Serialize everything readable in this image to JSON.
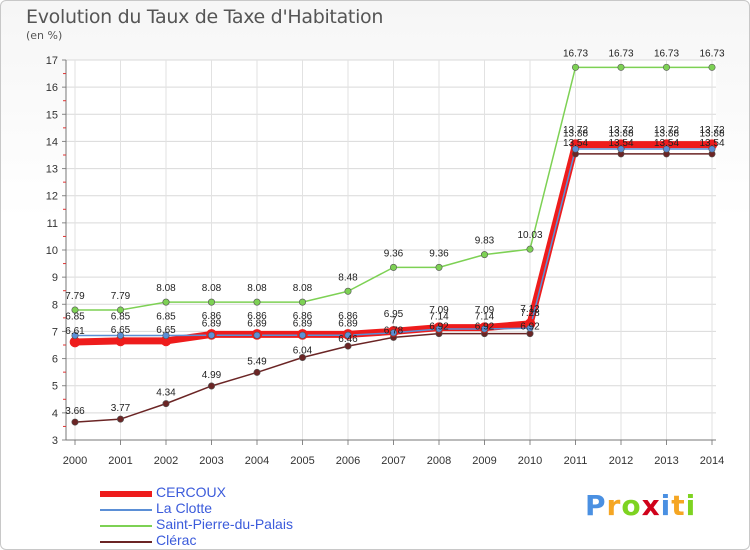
{
  "chart_data": {
    "type": "line",
    "title": "Evolution du Taux de Taxe d'Habitation",
    "unit_label": "(en %)",
    "categories": [
      "2000",
      "2001",
      "2002",
      "2003",
      "2004",
      "2005",
      "2006",
      "2007",
      "2008",
      "2009",
      "2010",
      "2011",
      "2012",
      "2013",
      "2014"
    ],
    "ylim": [
      3,
      17
    ],
    "yticks": [
      3,
      4,
      5,
      6,
      7,
      8,
      9,
      10,
      11,
      12,
      13,
      14,
      15,
      16,
      17
    ],
    "grid": true,
    "legend_position": "bottom-left",
    "series": [
      {
        "name": "CERCOUX",
        "color": "#ee1c1c",
        "values": [
          6.61,
          6.65,
          6.65,
          6.89,
          6.89,
          6.89,
          6.89,
          7,
          7.14,
          7.14,
          7.28,
          13.88,
          13.88,
          13.88,
          13.88
        ],
        "labels": [
          "6.61",
          "6.65",
          "6.65",
          "6.89",
          "6.89",
          "6.89",
          "6.89",
          "7",
          "7.14",
          "7.14",
          "7.28",
          "13.88",
          "13.88",
          "13.88",
          "13.88"
        ]
      },
      {
        "name": "La Clotte",
        "color": "#5b8fd6",
        "values": [
          6.85,
          6.85,
          6.85,
          6.86,
          6.86,
          6.86,
          6.86,
          6.95,
          7.09,
          7.09,
          7.12,
          13.72,
          13.72,
          13.72,
          13.72
        ],
        "labels": [
          "6.85",
          "6.85",
          "6.85",
          "6.86",
          "6.86",
          "6.86",
          "6.86",
          "6.95",
          "7.09",
          "7.09",
          "7.12",
          "13.72",
          "13.72",
          "13.72",
          "13.72"
        ]
      },
      {
        "name": "Saint-Pierre-du-Palais",
        "color": "#7dd154",
        "values": [
          7.79,
          7.79,
          8.08,
          8.08,
          8.08,
          8.08,
          8.48,
          9.36,
          9.36,
          9.83,
          10.03,
          16.73,
          16.73,
          16.73,
          16.73
        ],
        "labels": [
          "7.79",
          "7.79",
          "8.08",
          "8.08",
          "8.08",
          "8.08",
          "8.48",
          "9.36",
          "9.36",
          "9.83",
          "10.03",
          "16.73",
          "16.73",
          "16.73",
          "16.73"
        ]
      },
      {
        "name": "Clérac",
        "color": "#6b2525",
        "values": [
          3.66,
          3.77,
          4.34,
          4.99,
          5.49,
          6.04,
          6.46,
          6.78,
          6.92,
          6.92,
          6.92,
          13.54,
          13.54,
          13.54,
          13.54
        ],
        "labels": [
          "3.66",
          "3.77",
          "4.34",
          "4.99",
          "5.49",
          "6.04",
          "6.46",
          "6.78",
          "6.92",
          "6.92",
          "6.92",
          "13.54",
          "13.54",
          "13.54",
          "13.54"
        ]
      }
    ]
  },
  "branding": {
    "logo_letters": [
      "P",
      "r",
      "o",
      "x",
      "i",
      "t",
      "i"
    ],
    "logo_colors": [
      "#4a90e2",
      "#f5a623",
      "#7ed321",
      "#d0021b",
      "#4a90e2",
      "#f5a623",
      "#7ed321"
    ]
  }
}
